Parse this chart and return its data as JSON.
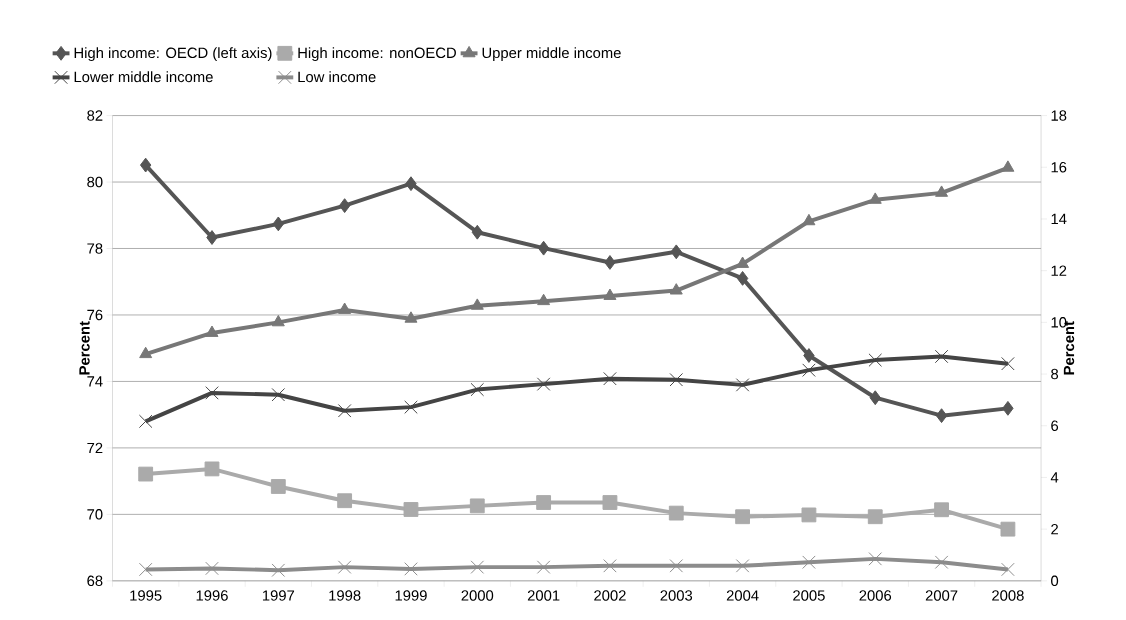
{
  "chart_data": {
    "type": "line",
    "ylabel": "Percent",
    "y2label": "Percent",
    "categories": [
      "1995",
      "1996",
      "1997",
      "1998",
      "1999",
      "2000",
      "2001",
      "2002",
      "2003",
      "2004",
      "2005",
      "2006",
      "2007",
      "2008"
    ],
    "ylim": [
      68,
      82
    ],
    "yticks": [
      68,
      70,
      72,
      74,
      76,
      78,
      80,
      82
    ],
    "y2lim": [
      0,
      18
    ],
    "y2ticks": [
      0,
      2,
      4,
      6,
      8,
      10,
      12,
      14,
      16,
      18
    ],
    "grid": "y",
    "legend": "top",
    "line_style": "solid",
    "series": [
      {
        "name": "High income: OECD (left axis)",
        "color": "#555555",
        "marker": "diamond",
        "values": [
          80.51,
          78.33,
          78.74,
          79.29,
          79.95,
          78.49,
          78.01,
          77.58,
          77.9,
          77.1,
          74.78,
          73.51,
          72.97,
          73.19
        ]
      },
      {
        "name": "High income: nonOECD",
        "color": "#aaaaaa",
        "marker": "square",
        "axis": "y2",
        "values": [
          4.13,
          4.33,
          3.65,
          3.1,
          2.76,
          2.9,
          3.03,
          3.03,
          2.62,
          2.48,
          2.55,
          2.48,
          2.75,
          2.0
        ]
      },
      {
        "name": "Upper middle income",
        "color": "#777777",
        "marker": "triangle",
        "axis": "y2",
        "values": [
          8.77,
          9.59,
          10.0,
          10.48,
          10.14,
          10.64,
          10.82,
          11.02,
          11.23,
          12.26,
          13.91,
          14.74,
          15.01,
          15.98
        ]
      },
      {
        "name": "Lower middle income",
        "color": "#444444",
        "marker": "cross",
        "axis": "y2",
        "values": [
          6.17,
          7.27,
          7.2,
          6.58,
          6.72,
          7.4,
          7.61,
          7.82,
          7.78,
          7.58,
          8.15,
          8.54,
          8.68,
          8.4
        ]
      },
      {
        "name": "Low income",
        "color": "#8c8c8c",
        "marker": "cross",
        "axis": "y2",
        "values": [
          0.44,
          0.48,
          0.41,
          0.53,
          0.46,
          0.53,
          0.53,
          0.58,
          0.58,
          0.58,
          0.72,
          0.85,
          0.72,
          0.44
        ]
      }
    ]
  }
}
